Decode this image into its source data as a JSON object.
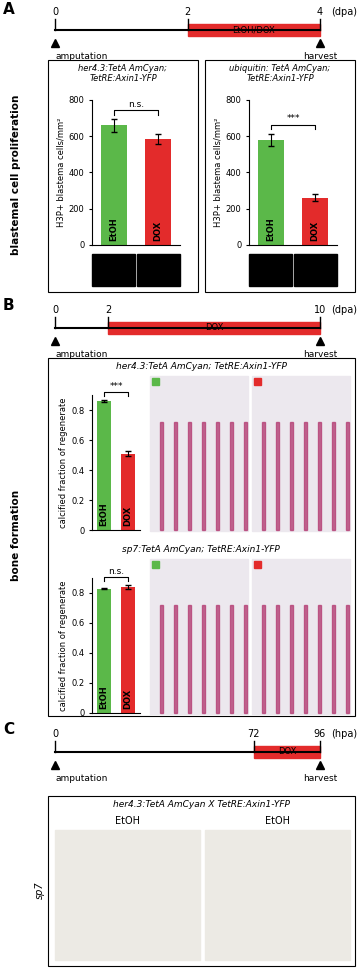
{
  "figure": {
    "panels": [
      {
        "label": "A",
        "side_label": "blastemal cell proliferation",
        "timeline": {
          "ticks": [
            0,
            2,
            4
          ],
          "unit": "(dpa)",
          "treatment": "EtOH/DOX",
          "treatment_range": [
            2,
            4
          ],
          "color": "#e32b2b",
          "start_label": "amputation",
          "end_label": "harvest"
        }
      },
      {
        "label": "B",
        "side_label": "bone formation",
        "timeline": {
          "ticks": [
            0,
            2,
            10
          ],
          "unit": "(dpa)",
          "treatment": "DOX",
          "treatment_range": [
            2,
            10
          ],
          "color": "#e32b2b",
          "start_label": "amputation",
          "end_label": "harvest"
        }
      },
      {
        "label": "C",
        "timeline": {
          "ticks": [
            0,
            72,
            96
          ],
          "unit": "(hpa)",
          "treatment": "DOX",
          "treatment_range": [
            72,
            96
          ],
          "color": "#e32b2b",
          "start_label": "amputation",
          "end_label": "harvest"
        },
        "image": {
          "title": "her4.3:TetA AmCyan X TetRE:Axin1-YFP",
          "columns": [
            "EtOH",
            "EtOH"
          ],
          "row_label": "sp7"
        }
      }
    ]
  },
  "chart_data": [
    {
      "type": "bar",
      "title": "her4.3:TetA AmCyan; TetRE:Axin1-YFP",
      "categories": [
        "EtOH",
        "DOX"
      ],
      "values": [
        660,
        585
      ],
      "errors": [
        35,
        28
      ],
      "colors": [
        "#5bb849",
        "#e32b2b"
      ],
      "ylabel": "H3P+ blastema cells/mm²",
      "ylim": [
        0,
        800
      ],
      "yticks": [
        0,
        200,
        400,
        600,
        800
      ],
      "annotation": "n.s.",
      "tick_labels": "y"
    },
    {
      "type": "bar",
      "title": "ubiquitin: TetA AmCyan; TetRE:Axin1-YFP",
      "categories": [
        "EtOH",
        "DOX"
      ],
      "values": [
        580,
        260
      ],
      "errors": [
        35,
        20
      ],
      "colors": [
        "#5bb849",
        "#e32b2b"
      ],
      "ylabel": "H3P+ blastema cells/mm²",
      "ylim": [
        0,
        800
      ],
      "yticks": [
        0,
        200,
        400,
        600,
        800
      ],
      "annotation": "***",
      "tick_labels": "y"
    },
    {
      "type": "bar",
      "title": "her4.3:TetA AmCyan; TetRE:Axin1-YFP",
      "categories": [
        "EtOH",
        "DOX"
      ],
      "values": [
        0.86,
        0.51
      ],
      "errors": [
        0.005,
        0.015
      ],
      "colors": [
        "#5bb849",
        "#e32b2b"
      ],
      "ylabel": "calcified fraction of regenerate",
      "ylim": [
        0,
        0.9
      ],
      "yticks": [
        0,
        0.2,
        0.4,
        0.6,
        0.8
      ],
      "annotation": "***",
      "tick_labels": "y"
    },
    {
      "type": "bar",
      "title": "sp7:TetA AmCyan; TetRE:Axin1-YFP",
      "categories": [
        "EtOH",
        "DOX"
      ],
      "values": [
        0.83,
        0.84
      ],
      "errors": [
        0.005,
        0.012
      ],
      "colors": [
        "#5bb849",
        "#e32b2b"
      ],
      "ylabel": "calcified fraction of regenerate",
      "ylim": [
        0,
        0.9
      ],
      "yticks": [
        0,
        0.2,
        0.4,
        0.6,
        0.8
      ],
      "annotation": "n.s.",
      "tick_labels": "y"
    }
  ]
}
